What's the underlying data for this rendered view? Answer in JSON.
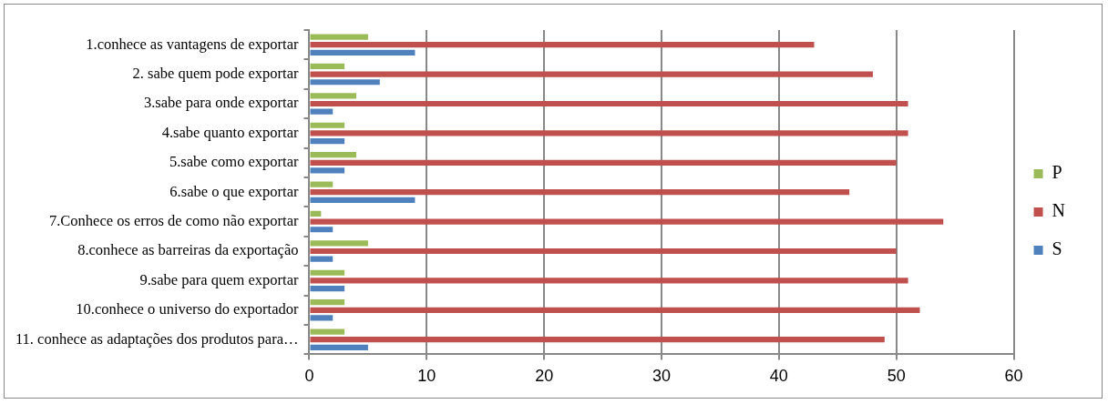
{
  "chart_data": {
    "type": "bar",
    "orientation": "horizontal",
    "categories": [
      "1.conhece as vantagens de exportar",
      "2. sabe quem pode exportar",
      "3.sabe para onde exportar",
      "4.sabe quanto exportar",
      "5.sabe como exportar",
      "6.sabe o que exportar",
      "7.Conhece os erros de como não exportar",
      "8.conhece as barreiras da exportação",
      "9.sabe para quem exportar",
      "10.conhece o universo do exportador",
      "11. conhece as adaptações dos produtos para…"
    ],
    "series": [
      {
        "name": "P",
        "color": "#9bbb59",
        "values": [
          5,
          3,
          4,
          3,
          4,
          2,
          1,
          5,
          3,
          3,
          3
        ]
      },
      {
        "name": "N",
        "color": "#c0504d",
        "values": [
          43,
          48,
          51,
          51,
          50,
          46,
          54,
          50,
          51,
          52,
          49
        ]
      },
      {
        "name": "S",
        "color": "#4f81bd",
        "values": [
          9,
          6,
          2,
          3,
          3,
          9,
          2,
          2,
          3,
          2,
          5
        ]
      }
    ],
    "xlim": [
      0,
      60
    ],
    "xticks": [
      0,
      10,
      20,
      30,
      40,
      50,
      60
    ],
    "grid": "x",
    "legend": "right"
  }
}
